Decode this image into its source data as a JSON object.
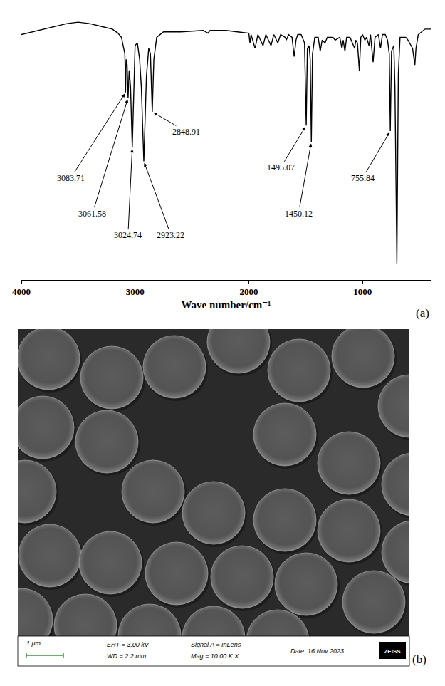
{
  "chart_data": {
    "type": "line",
    "x_label": "Wave number/cm⁻¹",
    "panel_label": "(a)",
    "color": "#000000",
    "x": [
      4000,
      3900,
      3800,
      3700,
      3600,
      3500,
      3400,
      3300,
      3200,
      3150,
      3120,
      3100,
      3090,
      3083.71,
      3078,
      3070,
      3061.58,
      3052,
      3040,
      3024.74,
      3010,
      3000,
      2980,
      2960,
      2945,
      2923.22,
      2900,
      2880,
      2865,
      2848.91,
      2835,
      2810,
      2750,
      2600,
      2400,
      2360,
      2340,
      2200,
      2100,
      2000,
      1990,
      1980,
      1945,
      1920,
      1875,
      1850,
      1805,
      1780,
      1745,
      1720,
      1680,
      1670,
      1650,
      1620,
      1601,
      1585,
      1570,
      1540,
      1510,
      1495.07,
      1485,
      1470,
      1460,
      1450.12,
      1440,
      1420,
      1390,
      1372,
      1355,
      1330,
      1310,
      1260,
      1240,
      1200,
      1181,
      1170,
      1155,
      1140,
      1110,
      1069,
      1060,
      1045,
      1028,
      1015,
      1000,
      980,
      965,
      943,
      930,
      907,
      890,
      860,
      842,
      825,
      800,
      780,
      765,
      755.84,
      745,
      725,
      715,
      698,
      685,
      670,
      640,
      620,
      600,
      560,
      540,
      530,
      510,
      480,
      450,
      400
    ],
    "values": [
      89,
      90,
      91,
      92,
      93,
      93.5,
      93,
      92,
      91,
      89.5,
      88,
      84,
      82,
      68,
      80,
      78,
      66,
      76,
      70,
      48,
      72,
      85,
      86,
      80,
      70,
      43,
      74,
      84,
      82,
      61,
      80,
      88,
      90,
      90,
      90.5,
      89.5,
      90.5,
      90.5,
      90,
      89.5,
      86,
      89,
      84,
      89,
      85,
      89,
      85,
      89,
      86,
      89,
      88,
      87,
      89,
      88,
      81,
      87,
      89,
      89,
      86,
      56,
      84,
      85,
      80,
      50,
      82,
      88,
      88,
      83,
      87,
      86,
      88,
      88,
      87,
      88,
      84,
      87,
      83,
      88,
      88,
      84,
      87,
      86,
      76,
      88,
      89,
      87,
      88,
      85,
      89,
      79,
      88,
      89,
      84,
      89,
      89,
      87,
      82,
      54,
      83,
      85,
      70,
      6,
      75,
      88,
      88,
      88,
      87,
      84,
      78,
      84,
      89,
      90,
      91,
      91
    ],
    "xlim": [
      4000,
      400
    ],
    "xticks": [
      4000,
      3000,
      2000,
      1000
    ],
    "ylim": [
      0,
      100
    ],
    "tick_labels": "x",
    "grid": false,
    "annotations": [
      {
        "text": "3083.71",
        "x": 3083.71,
        "y": 68
      },
      {
        "text": "3061.58",
        "x": 3061.58,
        "y": 66
      },
      {
        "text": "3024.74",
        "x": 3024.74,
        "y": 48
      },
      {
        "text": "2923.22",
        "x": 2923.22,
        "y": 43
      },
      {
        "text": "2848.91",
        "x": 2848.91,
        "y": 61
      },
      {
        "text": "1495.07",
        "x": 1495.07,
        "y": 56
      },
      {
        "text": "1450.12",
        "x": 1450.12,
        "y": 50
      },
      {
        "text": "755.84",
        "x": 755.84,
        "y": 54
      }
    ]
  },
  "sem_image": {
    "panel_label": "(b)",
    "scale_bar": "1 μm",
    "eht": "EHT = 3.00 kV",
    "wd": "WD = 2.2 mm",
    "signal": "Signal A = InLens",
    "mag": "Mag = 10.00 K X",
    "date": "Date :16 Nov 2023",
    "brand": "ZEISS"
  }
}
